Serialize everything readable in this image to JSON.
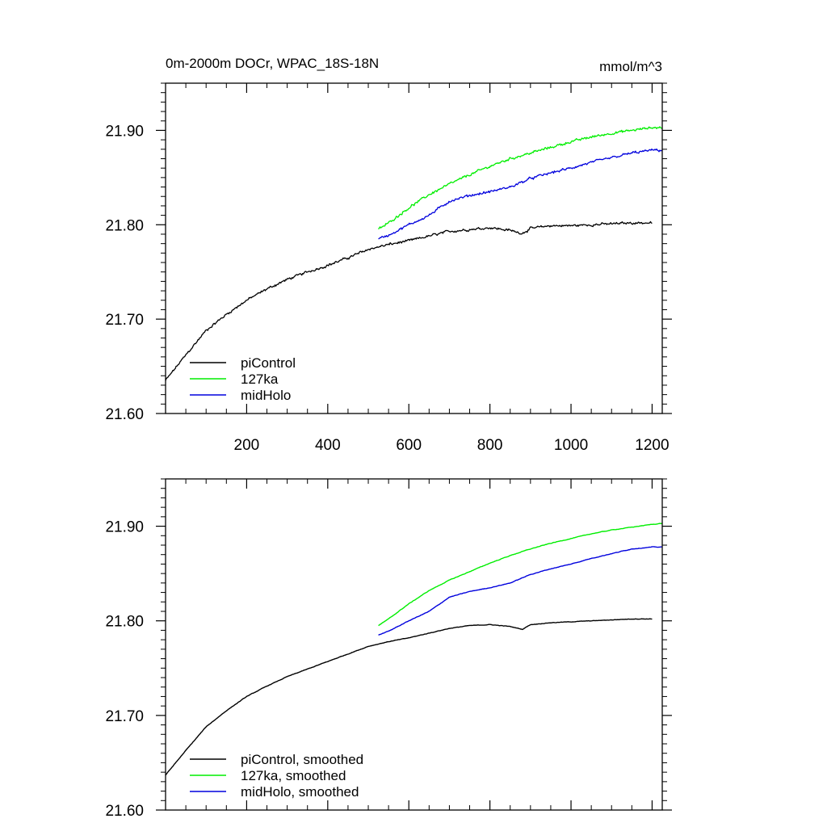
{
  "figure": {
    "title": "0m-2000m DOCr, WPAC_18S-18N",
    "units": "mmol/m^3"
  },
  "colors": {
    "piControl": "#000000",
    "127ka": "#00ee00",
    "midHolo": "#0000dd"
  },
  "chart_data": [
    {
      "type": "line",
      "title": "0m-2000m DOCr, WPAC_18S-18N",
      "units_label": "mmol/m^3",
      "xlabel": "",
      "ylabel": "",
      "xlim": [
        0,
        1225
      ],
      "ylim": [
        21.6,
        21.95
      ],
      "xticks": [
        200,
        400,
        600,
        800,
        1000,
        1200
      ],
      "xtick_labels": [
        "200",
        "400",
        "600",
        "800",
        "1000",
        "1200"
      ],
      "yticks": [
        21.6,
        21.7,
        21.8,
        21.9
      ],
      "ytick_labels": [
        "21.60",
        "21.70",
        "21.80",
        "21.90"
      ],
      "legend_position": "bottom-left",
      "noisy": true,
      "series": [
        {
          "name": "piControl",
          "legend": "piControl",
          "color": "#000000",
          "x": [
            0,
            50,
            100,
            150,
            200,
            250,
            300,
            350,
            400,
            450,
            500,
            550,
            600,
            650,
            700,
            750,
            800,
            850,
            880,
            900,
            950,
            1000,
            1050,
            1100,
            1150,
            1200
          ],
          "y": [
            21.635,
            21.662,
            21.688,
            21.705,
            21.72,
            21.732,
            21.742,
            21.75,
            21.757,
            21.765,
            21.774,
            21.779,
            21.783,
            21.788,
            21.793,
            21.795,
            21.797,
            21.794,
            21.791,
            21.796,
            21.799,
            21.799,
            21.8,
            21.801,
            21.802,
            21.802
          ]
        },
        {
          "name": "127ka",
          "legend": "127ka",
          "color": "#00ee00",
          "x": [
            525,
            550,
            600,
            650,
            700,
            750,
            800,
            850,
            900,
            950,
            1000,
            1050,
            1100,
            1150,
            1200,
            1225
          ],
          "y": [
            21.795,
            21.802,
            21.818,
            21.832,
            21.843,
            21.853,
            21.862,
            21.87,
            21.876,
            21.882,
            21.888,
            21.893,
            21.897,
            21.9,
            21.903,
            21.903
          ]
        },
        {
          "name": "midHolo",
          "legend": "midHolo",
          "color": "#0000dd",
          "x": [
            525,
            550,
            600,
            650,
            700,
            750,
            800,
            850,
            900,
            950,
            1000,
            1050,
            1100,
            1150,
            1200,
            1225
          ],
          "y": [
            21.785,
            21.789,
            21.8,
            21.81,
            21.825,
            21.831,
            21.835,
            21.84,
            21.849,
            21.855,
            21.86,
            21.866,
            21.871,
            21.876,
            21.879,
            21.879
          ]
        }
      ]
    },
    {
      "type": "line",
      "title": "",
      "xlabel": "",
      "ylabel": "",
      "xlim": [
        0,
        1225
      ],
      "ylim": [
        21.6,
        21.95
      ],
      "xticks": [
        200,
        400,
        600,
        800,
        1000,
        1200
      ],
      "xtick_labels": [],
      "yticks": [
        21.6,
        21.7,
        21.8,
        21.9
      ],
      "ytick_labels": [
        "21.60",
        "21.70",
        "21.80",
        "21.90"
      ],
      "legend_position": "bottom-left",
      "noisy": false,
      "series": [
        {
          "name": "piControl",
          "legend": "piControl, smoothed",
          "color": "#000000",
          "x": [
            0,
            50,
            100,
            150,
            200,
            250,
            300,
            350,
            400,
            450,
            500,
            550,
            600,
            650,
            700,
            750,
            800,
            850,
            880,
            900,
            950,
            1000,
            1050,
            1100,
            1150,
            1200
          ],
          "y": [
            21.637,
            21.663,
            21.688,
            21.705,
            21.72,
            21.731,
            21.741,
            21.749,
            21.757,
            21.765,
            21.773,
            21.778,
            21.782,
            21.787,
            21.792,
            21.795,
            21.796,
            21.794,
            21.791,
            21.796,
            21.798,
            21.799,
            21.8,
            21.801,
            21.802,
            21.802
          ]
        },
        {
          "name": "127ka",
          "legend": "127ka, smoothed",
          "color": "#00ee00",
          "x": [
            525,
            550,
            600,
            650,
            700,
            750,
            800,
            850,
            900,
            950,
            1000,
            1050,
            1100,
            1150,
            1200,
            1225
          ],
          "y": [
            21.795,
            21.802,
            21.818,
            21.832,
            21.843,
            21.852,
            21.861,
            21.869,
            21.876,
            21.882,
            21.887,
            21.892,
            21.896,
            21.899,
            21.902,
            21.903
          ]
        },
        {
          "name": "midHolo",
          "legend": "midHolo, smoothed",
          "color": "#0000dd",
          "x": [
            525,
            550,
            600,
            650,
            700,
            750,
            800,
            850,
            900,
            950,
            1000,
            1050,
            1100,
            1150,
            1200,
            1225
          ],
          "y": [
            21.785,
            21.789,
            21.8,
            21.81,
            21.825,
            21.831,
            21.835,
            21.84,
            21.849,
            21.855,
            21.86,
            21.866,
            21.871,
            21.876,
            21.878,
            21.878
          ]
        }
      ]
    }
  ]
}
